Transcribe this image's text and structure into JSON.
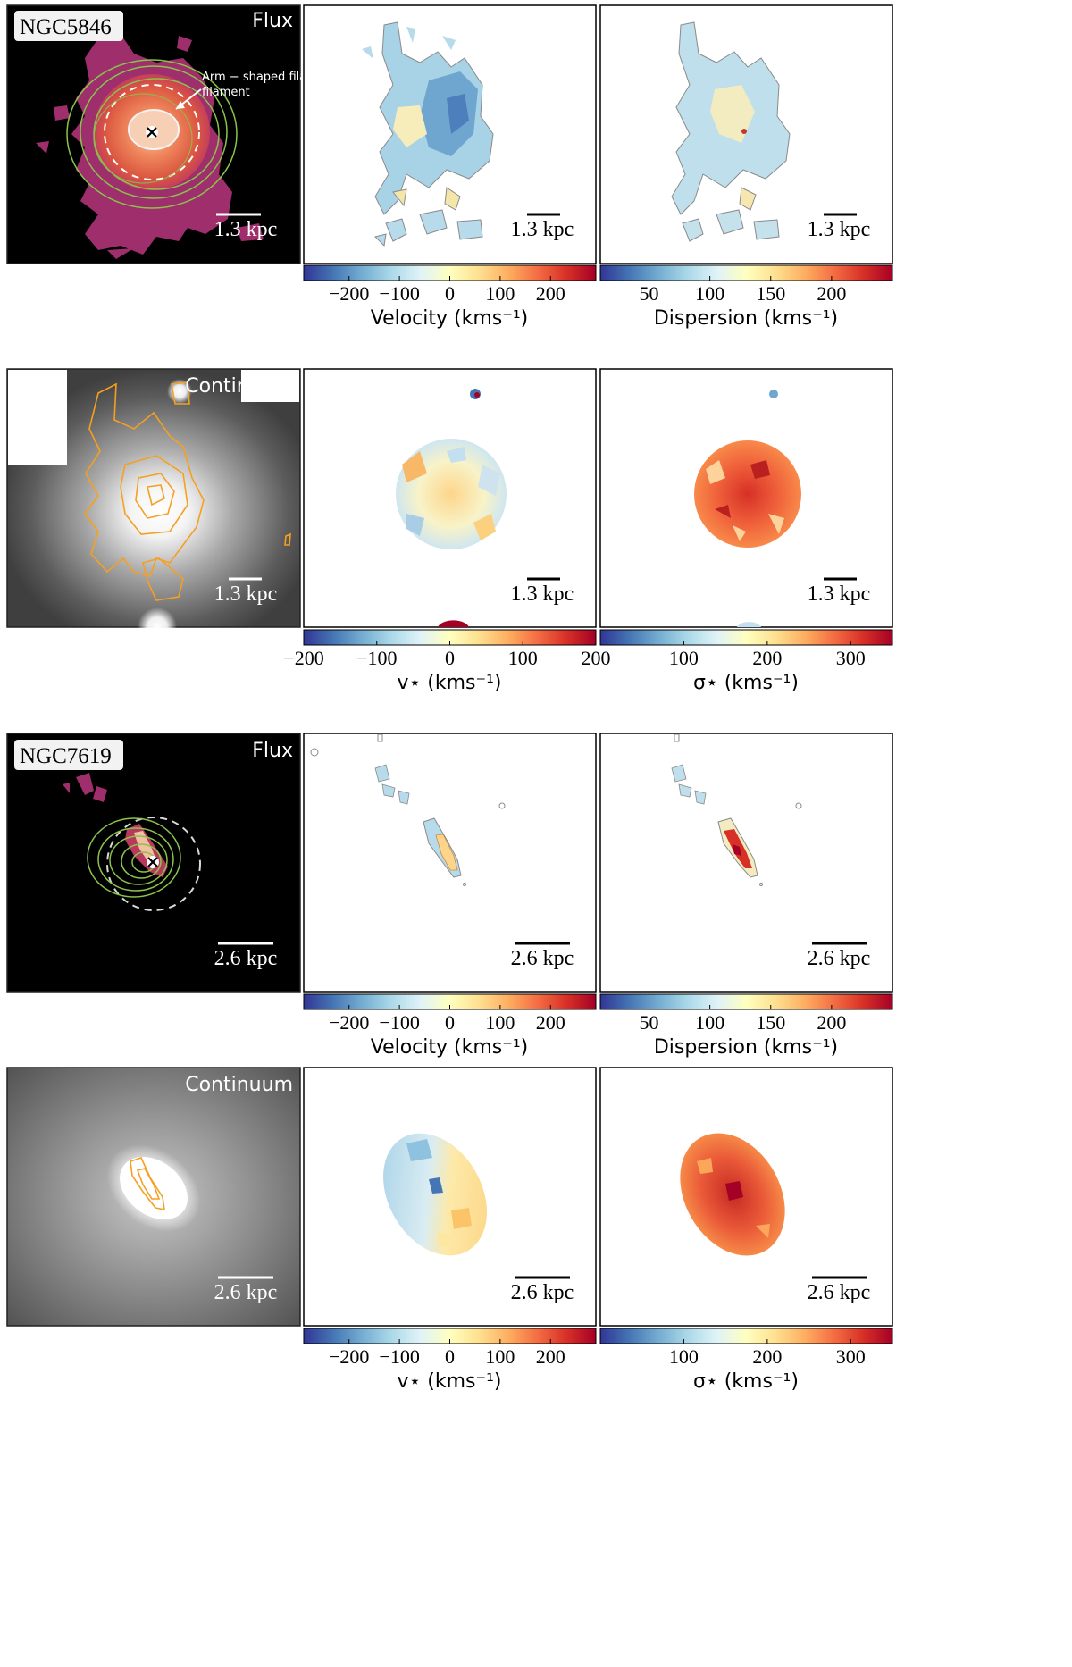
{
  "rows": [
    {
      "id": "gas-ngc5846",
      "galaxy": "NGC5846",
      "panel_label": "Flux",
      "scale": "1.3 kpc",
      "annotation": "Arm − shaped filament",
      "colorbars": [
        {
          "label": "Velocity (kms⁻¹)",
          "ticks": [
            "−200",
            "−100",
            "0",
            "100",
            "200"
          ],
          "tick_values": [
            -200,
            -100,
            0,
            100,
            200
          ],
          "range": [
            -290,
            290
          ]
        },
        {
          "label": "Dispersion (kms⁻¹)",
          "ticks": [
            "50",
            "100",
            "150",
            "200"
          ],
          "tick_values": [
            50,
            100,
            150,
            200
          ],
          "range": [
            10,
            250
          ]
        }
      ]
    },
    {
      "id": "stars-ngc5846",
      "galaxy": "",
      "panel_label": "Continuum",
      "scale": "1.3 kpc",
      "colorbars": [
        {
          "label": "v⋆ (kms⁻¹)",
          "ticks": [
            "−200",
            "−100",
            "0",
            "100",
            "200"
          ],
          "tick_values": [
            -200,
            -100,
            0,
            100,
            200
          ],
          "range": [
            -200,
            200
          ]
        },
        {
          "label": "σ⋆ (kms⁻¹)",
          "ticks": [
            "100",
            "200",
            "300"
          ],
          "tick_values": [
            100,
            200,
            300
          ],
          "range": [
            0,
            350
          ]
        }
      ]
    },
    {
      "id": "gas-ngc7619",
      "galaxy": "NGC7619",
      "panel_label": "Flux",
      "scale": "2.6 kpc",
      "colorbars": [
        {
          "label": "Velocity (kms⁻¹)",
          "ticks": [
            "−200",
            "−100",
            "0",
            "100",
            "200"
          ],
          "tick_values": [
            -200,
            -100,
            0,
            100,
            200
          ],
          "range": [
            -290,
            290
          ]
        },
        {
          "label": "Dispersion (kms⁻¹)",
          "ticks": [
            "50",
            "100",
            "150",
            "200"
          ],
          "tick_values": [
            50,
            100,
            150,
            200
          ],
          "range": [
            10,
            250
          ]
        }
      ]
    },
    {
      "id": "stars-ngc7619",
      "galaxy": "",
      "panel_label": "Continuum",
      "scale": "2.6 kpc",
      "colorbars": [
        {
          "label": "v⋆ (kms⁻¹)",
          "ticks": [
            "−200",
            "−100",
            "0",
            "100",
            "200"
          ],
          "tick_values": [
            -200,
            -100,
            0,
            100,
            200
          ],
          "range": [
            -290,
            290
          ]
        },
        {
          "label": "σ⋆ (kms⁻¹)",
          "ticks": [
            "100",
            "200",
            "300"
          ],
          "tick_values": [
            100,
            200,
            300
          ],
          "range": [
            0,
            350
          ]
        }
      ]
    }
  ],
  "colors": {
    "colormap": [
      "#313695",
      "#4575b4",
      "#74add1",
      "#abd9e9",
      "#e0f3f8",
      "#ffffbf",
      "#fee090",
      "#fdae61",
      "#f46d43",
      "#d73027",
      "#a50026"
    ],
    "flux_magenta": "#a0306a",
    "flux_orange": "#e8623a",
    "contour_green": "#8bc34a",
    "contour_orange": "#f5a020",
    "contour_gray": "#8c8c8c"
  }
}
